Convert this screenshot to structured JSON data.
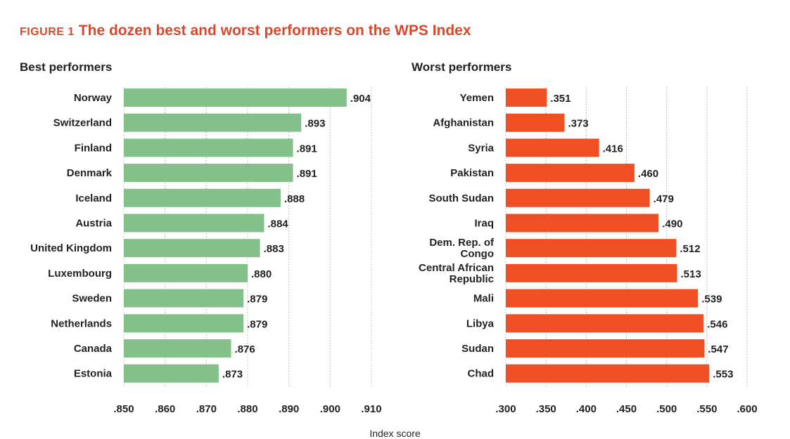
{
  "figure": {
    "label": "FIGURE 1",
    "title": "The dozen best and worst performers on the WPS Index",
    "xlabel": "Index score"
  },
  "chart_data": [
    {
      "type": "bar",
      "orientation": "horizontal",
      "title": "Best performers",
      "color": "#84c08a",
      "categories": [
        "Norway",
        "Switzerland",
        "Finland",
        "Denmark",
        "Iceland",
        "Austria",
        "United Kingdom",
        "Luxembourg",
        "Sweden",
        "Netherlands",
        "Canada",
        "Estonia"
      ],
      "values": [
        0.904,
        0.893,
        0.891,
        0.891,
        0.888,
        0.884,
        0.883,
        0.88,
        0.879,
        0.879,
        0.876,
        0.873
      ],
      "value_labels": [
        ".904",
        ".893",
        ".891",
        ".891",
        ".888",
        ".884",
        ".883",
        ".880",
        ".879",
        ".879",
        ".876",
        ".873"
      ],
      "xlim": [
        0.85,
        0.91
      ],
      "ticks": [
        0.85,
        0.86,
        0.87,
        0.88,
        0.89,
        0.9,
        0.91
      ],
      "tick_labels": [
        ".850",
        ".860",
        ".870",
        ".880",
        ".890",
        ".900",
        ".910"
      ],
      "grid": true
    },
    {
      "type": "bar",
      "orientation": "horizontal",
      "title": "Worst performers",
      "color": "#f04e23",
      "categories": [
        "Yemen",
        "Afghanistan",
        "Syria",
        "Pakistan",
        "South Sudan",
        "Iraq",
        "Dem. Rep. of Congo",
        "Central African Republic",
        "Mali",
        "Libya",
        "Sudan",
        "Chad"
      ],
      "category_lines": [
        [
          "Yemen"
        ],
        [
          "Afghanistan"
        ],
        [
          "Syria"
        ],
        [
          "Pakistan"
        ],
        [
          "South Sudan"
        ],
        [
          "Iraq"
        ],
        [
          "Dem. Rep. of",
          "Congo"
        ],
        [
          "Central African",
          "Republic"
        ],
        [
          "Mali"
        ],
        [
          "Libya"
        ],
        [
          "Sudan"
        ],
        [
          "Chad"
        ]
      ],
      "values": [
        0.351,
        0.373,
        0.416,
        0.46,
        0.479,
        0.49,
        0.512,
        0.513,
        0.539,
        0.546,
        0.547,
        0.553
      ],
      "value_labels": [
        ".351",
        ".373",
        ".416",
        ".460",
        ".479",
        ".490",
        ".512",
        ".513",
        ".539",
        ".546",
        ".547",
        ".553"
      ],
      "xlim": [
        0.3,
        0.6
      ],
      "ticks": [
        0.3,
        0.35,
        0.4,
        0.45,
        0.5,
        0.55,
        0.6
      ],
      "tick_labels": [
        ".300",
        ".350",
        ".400",
        ".450",
        ".500",
        ".550",
        ".600"
      ],
      "grid": true
    }
  ]
}
